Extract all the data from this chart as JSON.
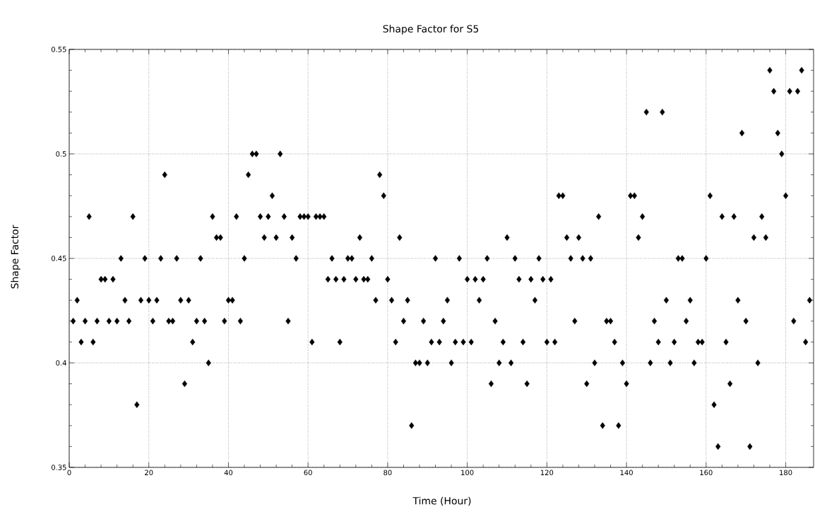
{
  "chart_data": {
    "type": "scatter",
    "title": "Shape Factor for S5",
    "xlabel": "Time (Hour)",
    "ylabel": "Shape Factor",
    "x": [
      1,
      2,
      3,
      4,
      5,
      6,
      7,
      8,
      9,
      10,
      11,
      12,
      13,
      14,
      15,
      16,
      17,
      18,
      19,
      20,
      21,
      22,
      23,
      24,
      25,
      26,
      27,
      28,
      29,
      30,
      31,
      32,
      33,
      34,
      35,
      36,
      37,
      38,
      39,
      40,
      41,
      42,
      43,
      44,
      45,
      46,
      47,
      48,
      49,
      50,
      51,
      52,
      53,
      54,
      55,
      56,
      57,
      58,
      59,
      60,
      61,
      62,
      63,
      64,
      65,
      66,
      67,
      68,
      69,
      70,
      71,
      72,
      73,
      74,
      75,
      76,
      77,
      78,
      79,
      80,
      81,
      82,
      83,
      84,
      85,
      86,
      87,
      88,
      89,
      90,
      91,
      92,
      93,
      94,
      95,
      96,
      97,
      98,
      99,
      100,
      101,
      102,
      103,
      104,
      105,
      106,
      107,
      108,
      109,
      110,
      111,
      112,
      113,
      114,
      115,
      116,
      117,
      118,
      119,
      120,
      121,
      122,
      123,
      124,
      125,
      126,
      127,
      128,
      129,
      130,
      131,
      132,
      133,
      134,
      135,
      136,
      137,
      138,
      139,
      140,
      141,
      142,
      143,
      144,
      145,
      146,
      147,
      148,
      149,
      150,
      151,
      152,
      153,
      154,
      155,
      156,
      157,
      158,
      159,
      160,
      161,
      162,
      163,
      164,
      165,
      166,
      167,
      168,
      169,
      170,
      171,
      172,
      173,
      174,
      175,
      176,
      177,
      178,
      179,
      180,
      181,
      182,
      183,
      184,
      185,
      186
    ],
    "values": [
      0.42,
      0.43,
      0.41,
      0.42,
      0.47,
      0.41,
      0.42,
      0.44,
      0.44,
      0.42,
      0.44,
      0.42,
      0.45,
      0.43,
      0.42,
      0.47,
      0.38,
      0.43,
      0.45,
      0.43,
      0.42,
      0.43,
      0.45,
      0.49,
      0.42,
      0.42,
      0.45,
      0.43,
      0.39,
      0.43,
      0.41,
      0.42,
      0.45,
      0.42,
      0.4,
      0.47,
      0.46,
      0.46,
      0.42,
      0.43,
      0.43,
      0.47,
      0.42,
      0.45,
      0.49,
      0.5,
      0.5,
      0.47,
      0.46,
      0.47,
      0.48,
      0.46,
      0.5,
      0.47,
      0.42,
      0.46,
      0.45,
      0.47,
      0.47,
      0.47,
      0.41,
      0.47,
      0.47,
      0.47,
      0.44,
      0.45,
      0.44,
      0.41,
      0.44,
      0.45,
      0.45,
      0.44,
      0.46,
      0.44,
      0.44,
      0.45,
      0.43,
      0.49,
      0.48,
      0.44,
      0.43,
      0.41,
      0.46,
      0.42,
      0.43,
      0.37,
      0.4,
      0.4,
      0.42,
      0.4,
      0.41,
      0.45,
      0.41,
      0.42,
      0.43,
      0.4,
      0.41,
      0.45,
      0.41,
      0.44,
      0.41,
      0.44,
      0.43,
      0.44,
      0.45,
      0.39,
      0.42,
      0.4,
      0.41,
      0.46,
      0.4,
      0.45,
      0.44,
      0.41,
      0.39,
      0.44,
      0.43,
      0.45,
      0.44,
      0.41,
      0.44,
      0.41,
      0.48,
      0.48,
      0.46,
      0.45,
      0.42,
      0.46,
      0.45,
      0.39,
      0.45,
      0.4,
      0.47,
      0.37,
      0.42,
      0.42,
      0.41,
      0.37,
      0.4,
      0.39,
      0.48,
      0.48,
      0.46,
      0.47,
      0.52,
      0.4,
      0.42,
      0.41,
      0.52,
      0.43,
      0.4,
      0.41,
      0.45,
      0.45,
      0.42,
      0.43,
      0.4,
      0.41,
      0.41,
      0.45,
      0.48,
      0.38,
      0.36,
      0.47,
      0.41,
      0.39,
      0.47,
      0.43,
      0.51,
      0.42,
      0.36,
      0.46,
      0.4,
      0.47,
      0.46,
      0.54,
      0.53,
      0.51,
      0.5,
      0.48,
      0.53,
      0.42,
      0.53,
      0.54,
      0.41,
      0.43
    ],
    "color": "#000000",
    "marker": "diamond",
    "grid": true,
    "xlim": [
      0,
      187
    ],
    "ylim": [
      0.35,
      0.55
    ],
    "xticks": [
      0,
      20,
      40,
      60,
      80,
      100,
      120,
      140,
      160,
      180
    ],
    "yticks": [
      0.35,
      0.4,
      0.45,
      0.5,
      0.55
    ]
  }
}
